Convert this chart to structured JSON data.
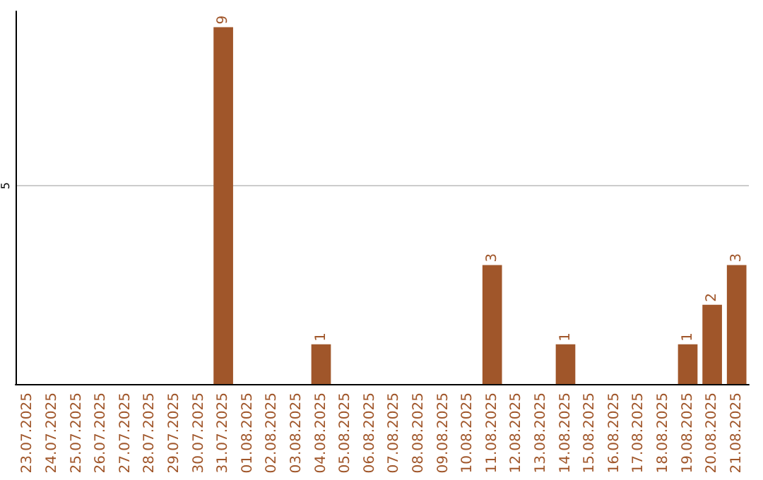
{
  "chart_data": {
    "type": "bar",
    "categories": [
      "23.07.2025",
      "24.07.2025",
      "25.07.2025",
      "26.07.2025",
      "27.07.2025",
      "28.07.2025",
      "29.07.2025",
      "30.07.2025",
      "31.07.2025",
      "01.08.2025",
      "02.08.2025",
      "03.08.2025",
      "04.08.2025",
      "05.08.2025",
      "06.08.2025",
      "07.08.2025",
      "08.08.2025",
      "09.08.2025",
      "10.08.2025",
      "11.08.2025",
      "12.08.2025",
      "13.08.2025",
      "14.08.2025",
      "15.08.2025",
      "16.08.2025",
      "17.08.2025",
      "18.08.2025",
      "19.08.2025",
      "20.08.2025",
      "21.08.2025"
    ],
    "values": [
      0,
      0,
      0,
      0,
      0,
      0,
      0,
      0,
      9,
      0,
      0,
      0,
      1,
      0,
      0,
      0,
      0,
      0,
      0,
      3,
      0,
      0,
      1,
      0,
      0,
      0,
      0,
      1,
      2,
      3
    ],
    "value_labels": [
      null,
      null,
      null,
      null,
      null,
      null,
      null,
      null,
      "9",
      null,
      null,
      null,
      "1",
      null,
      null,
      null,
      null,
      null,
      null,
      "3",
      null,
      null,
      "1",
      null,
      null,
      null,
      null,
      "1",
      "2",
      "3"
    ],
    "color": "#a0562a",
    "ylim": [
      0,
      9.4
    ],
    "yticks": [
      5
    ],
    "grid": "y"
  }
}
